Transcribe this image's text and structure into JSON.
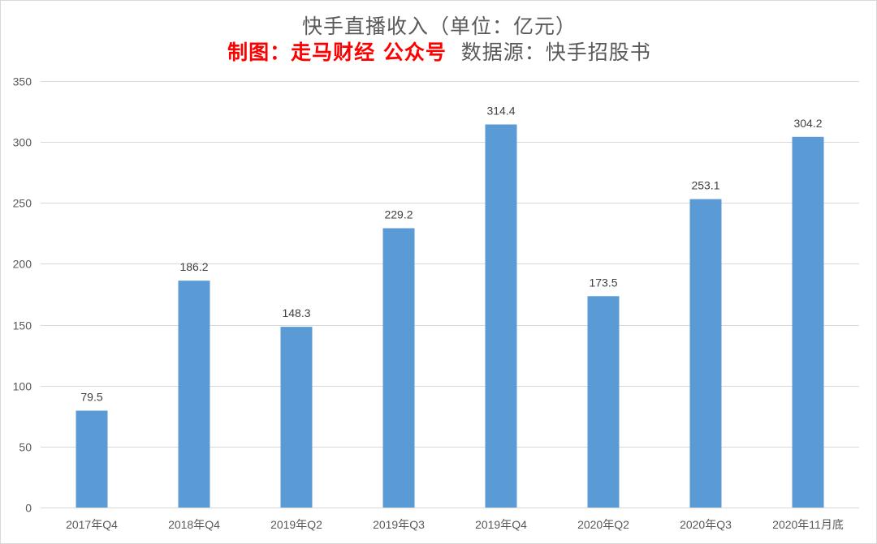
{
  "header": {
    "title": "快手直播收入（单位：亿元）",
    "subtitle_red": "制图：走马财经 公众号",
    "subtitle_gray": "数据源：快手招股书"
  },
  "colors": {
    "bar": "#5b9bd5",
    "grid": "#d9d9d9",
    "text": "#595959",
    "highlight": "#ff0000"
  },
  "chart_data": {
    "type": "bar",
    "title": "快手直播收入（单位：亿元）",
    "subtitle": "制图：走马财经 公众号 数据源：快手招股书",
    "xlabel": "",
    "ylabel": "",
    "categories": [
      "2017年Q4",
      "2018年Q4",
      "2019年Q2",
      "2019年Q3",
      "2019年Q4",
      "2020年Q2",
      "2020年Q3",
      "2020年11月底"
    ],
    "values": [
      79.5,
      186.2,
      148.3,
      229.2,
      314.4,
      173.5,
      253.1,
      304.2
    ],
    "data_labels": [
      "79.5",
      "186.2",
      "148.3",
      "229.2",
      "314.4",
      "173.5",
      "253.1",
      "304.2"
    ],
    "ylim": [
      0,
      350
    ],
    "yticks": [
      0,
      50,
      100,
      150,
      200,
      250,
      300,
      350
    ],
    "grid": true,
    "legend": false
  }
}
